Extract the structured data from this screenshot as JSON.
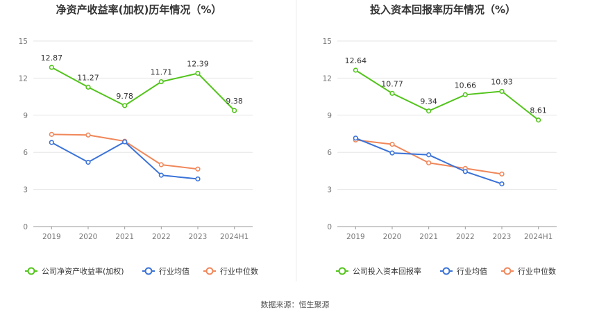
{
  "source": "数据来源：恒生聚源",
  "colors": {
    "green": "#52c41a",
    "blue": "#3a72d8",
    "orange": "#f0875a",
    "grid": "#e6e6e6",
    "divider": "#eeeeee"
  },
  "chart_data": [
    {
      "type": "line",
      "title": "净资产收益率(加权)历年情况（%）",
      "categories": [
        "2019",
        "2020",
        "2021",
        "2022",
        "2023",
        "2024H1"
      ],
      "ylim": [
        0,
        15
      ],
      "yticks": [
        0,
        3,
        6,
        9,
        12,
        15
      ],
      "grid": true,
      "legend_position": "bottom",
      "series": [
        {
          "name": "公司净资产收益率(加权)",
          "color": "#52c41a",
          "values": [
            12.87,
            11.27,
            9.78,
            11.71,
            12.39,
            9.38
          ],
          "labels": [
            "12.87",
            "11.27",
            "9.78",
            "11.71",
            "12.39",
            "9.38"
          ]
        },
        {
          "name": "行业均值",
          "color": "#3a72d8",
          "values": [
            6.8,
            5.2,
            6.85,
            4.15,
            3.85,
            null
          ]
        },
        {
          "name": "行业中位数",
          "color": "#f0875a",
          "values": [
            7.45,
            7.4,
            6.9,
            5.0,
            4.65,
            null
          ]
        }
      ]
    },
    {
      "type": "line",
      "title": "投入资本回报率历年情况（%）",
      "categories": [
        "2019",
        "2020",
        "2021",
        "2022",
        "2023",
        "2024H1"
      ],
      "ylim": [
        0,
        15
      ],
      "yticks": [
        0,
        3,
        6,
        9,
        12,
        15
      ],
      "grid": true,
      "legend_position": "bottom",
      "series": [
        {
          "name": "公司投入资本回报率",
          "color": "#52c41a",
          "values": [
            12.64,
            10.77,
            9.34,
            10.66,
            10.93,
            8.61
          ],
          "labels": [
            "12.64",
            "10.77",
            "9.34",
            "10.66",
            "10.93",
            "8.61"
          ]
        },
        {
          "name": "行业均值",
          "color": "#3a72d8",
          "values": [
            7.15,
            5.95,
            5.8,
            4.45,
            3.45,
            null
          ]
        },
        {
          "name": "行业中位数",
          "color": "#f0875a",
          "values": [
            7.0,
            6.65,
            5.15,
            4.7,
            4.25,
            null
          ]
        }
      ]
    }
  ]
}
